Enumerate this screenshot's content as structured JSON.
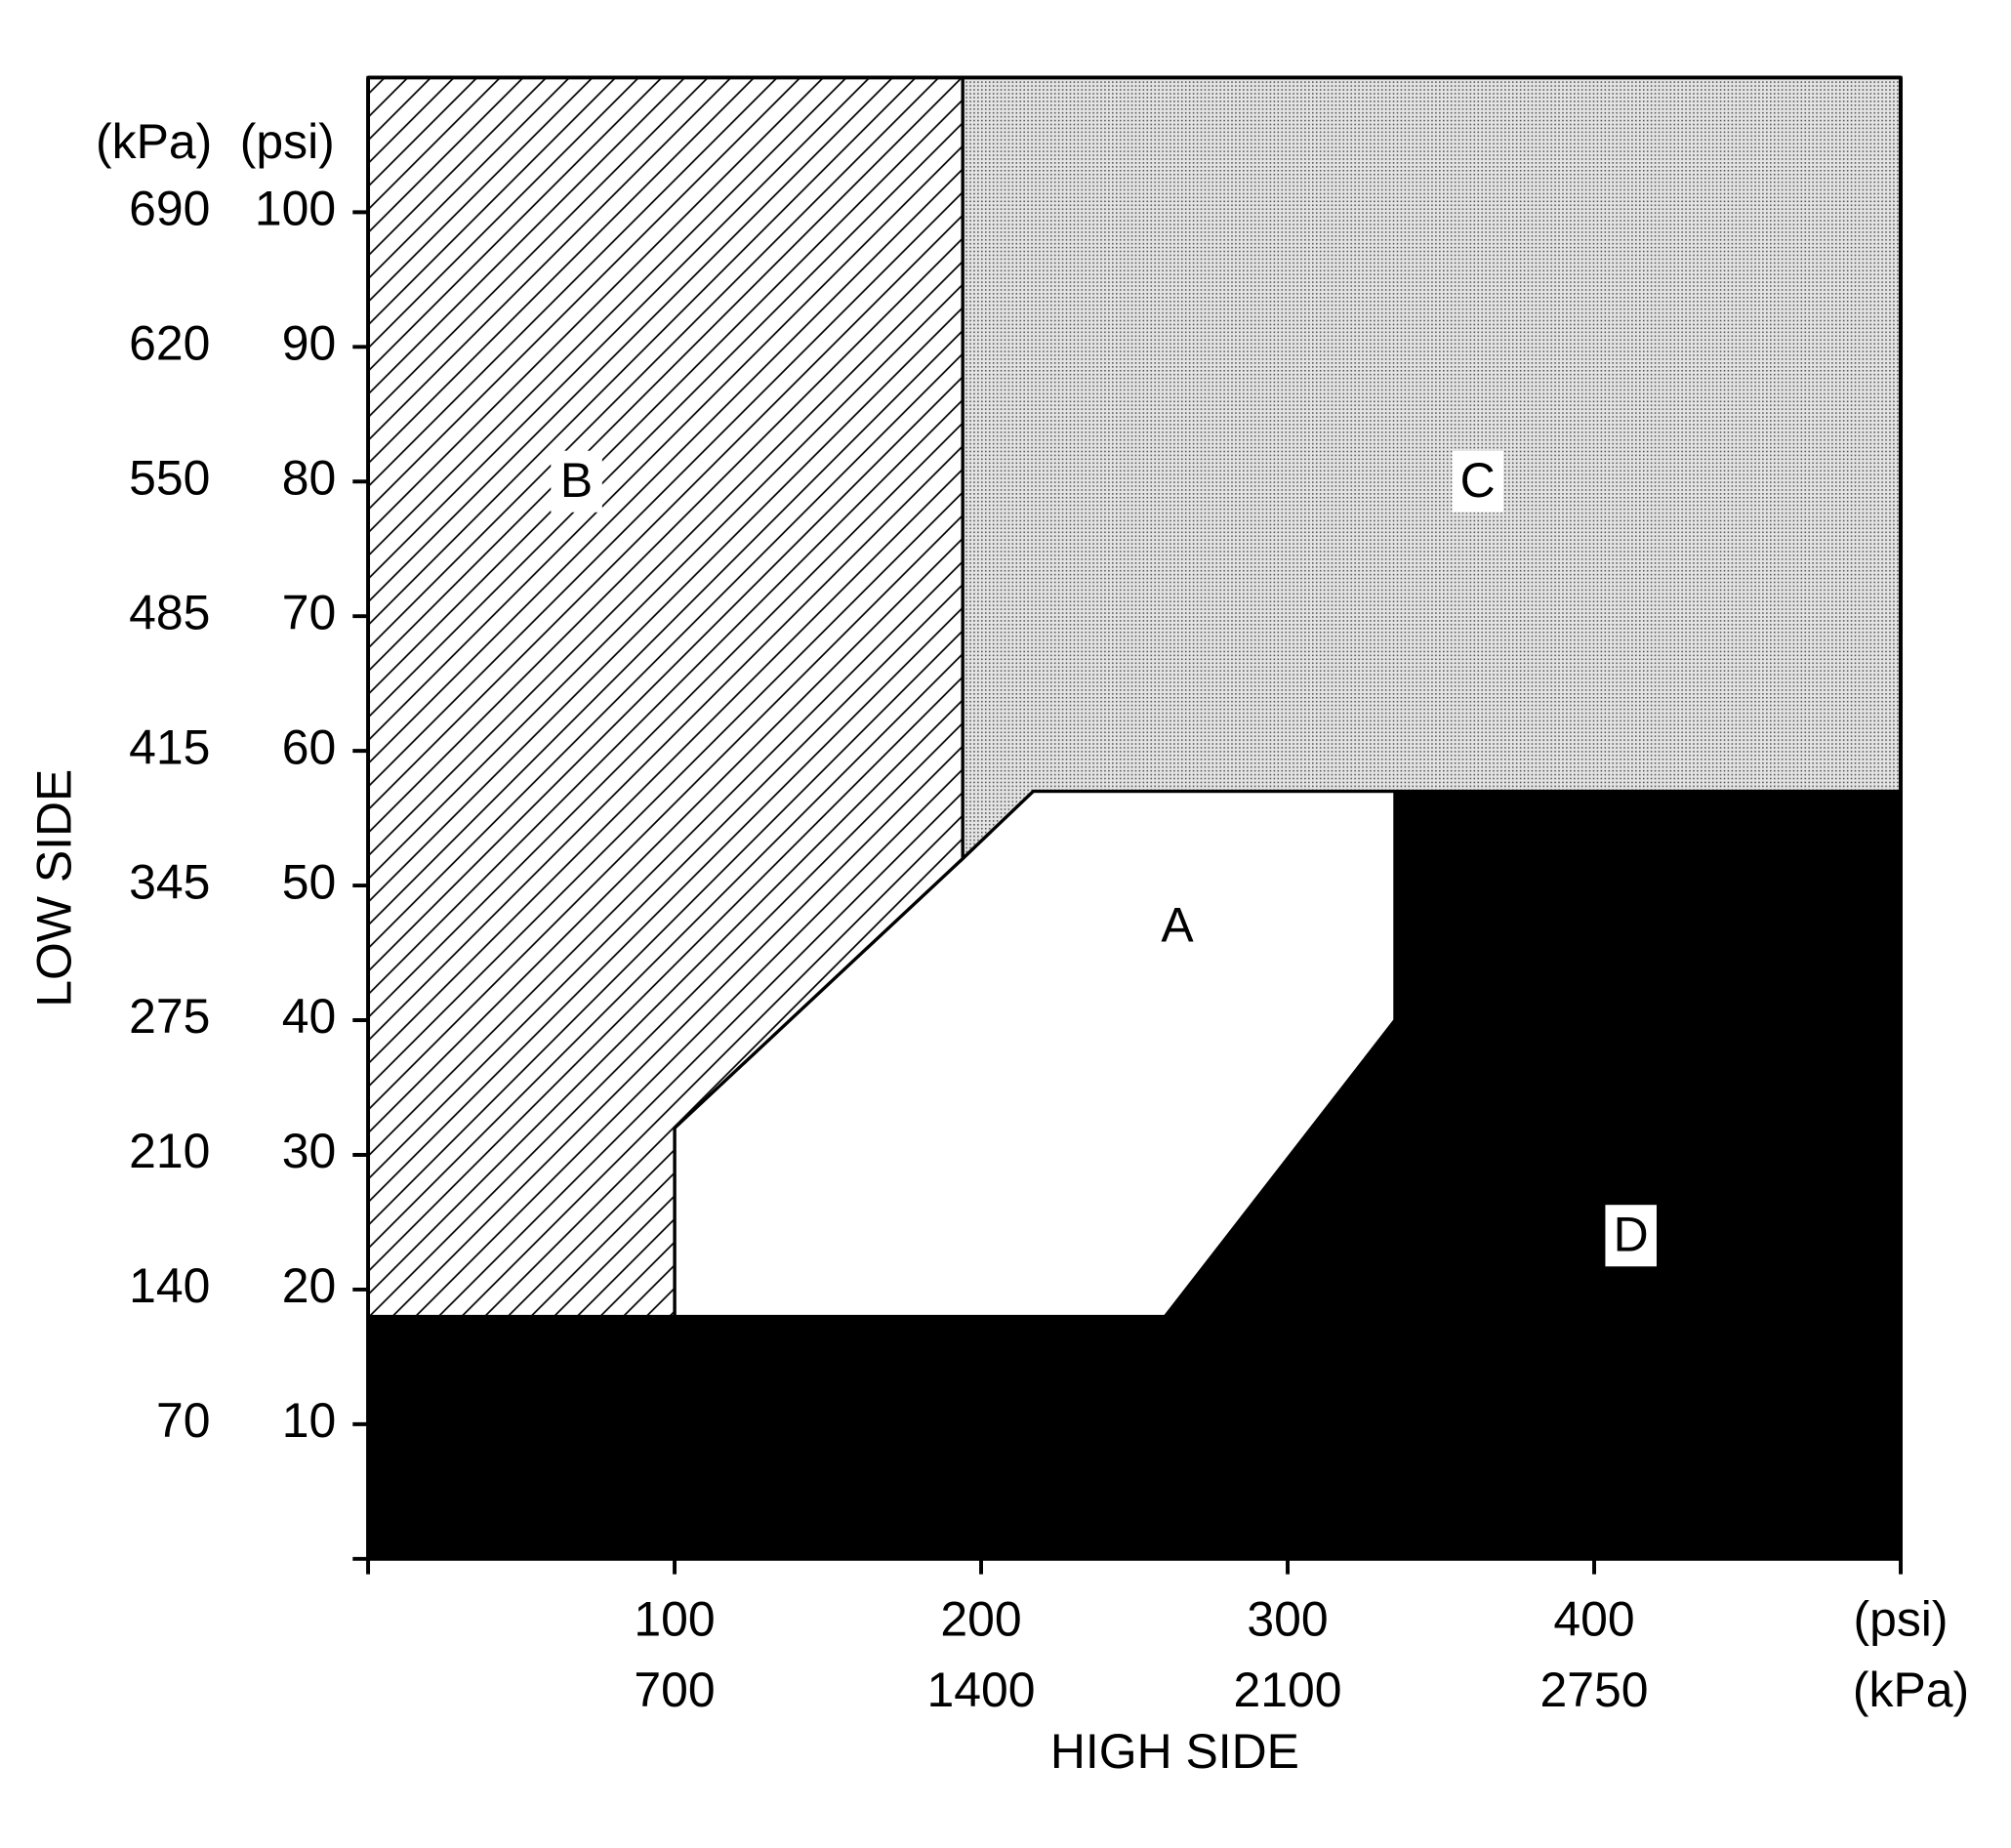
{
  "chart_data": {
    "type": "region",
    "x_label": "HIGH SIDE",
    "y_label": "LOW SIDE",
    "x_unit_primary": "(psi)",
    "x_unit_secondary": "(kPa)",
    "y_unit_primary": "(psi)",
    "y_unit_secondary": "(kPa)",
    "xlim": [
      0,
      500
    ],
    "ylim": [
      0,
      110
    ],
    "xticks": [
      100,
      200,
      300,
      400
    ],
    "xticks_kpa": [
      700,
      1400,
      2100,
      2750
    ],
    "yticks": [
      10,
      20,
      30,
      40,
      50,
      60,
      70,
      80,
      90,
      100
    ],
    "yticks_kpa": [
      70,
      140,
      210,
      275,
      345,
      415,
      485,
      550,
      620,
      690
    ],
    "regions": [
      {
        "name": "D",
        "fill": "black",
        "x": [
          0,
          500,
          500,
          335,
          335,
          260,
          0
        ],
        "y": [
          0,
          0,
          57,
          57,
          40,
          18,
          18
        ],
        "label_x": 412,
        "label_y": 24
      },
      {
        "name": "A",
        "fill": "white",
        "x": [
          100,
          100,
          194,
          217,
          335,
          335,
          260
        ],
        "y": [
          18,
          32,
          52,
          57,
          57,
          40,
          18
        ],
        "label_x": 264,
        "label_y": 47
      },
      {
        "name": "B",
        "fill": "hatch",
        "x": [
          0,
          0,
          194,
          194,
          100,
          100
        ],
        "y": [
          18,
          110,
          110,
          52,
          32,
          18
        ],
        "label_x": 68,
        "label_y": 80
      },
      {
        "name": "C",
        "fill": "dots",
        "x": [
          194,
          500,
          500,
          217,
          194
        ],
        "y": [
          110,
          110,
          57,
          57,
          52
        ],
        "label_x": 362,
        "label_y": 80
      }
    ]
  }
}
